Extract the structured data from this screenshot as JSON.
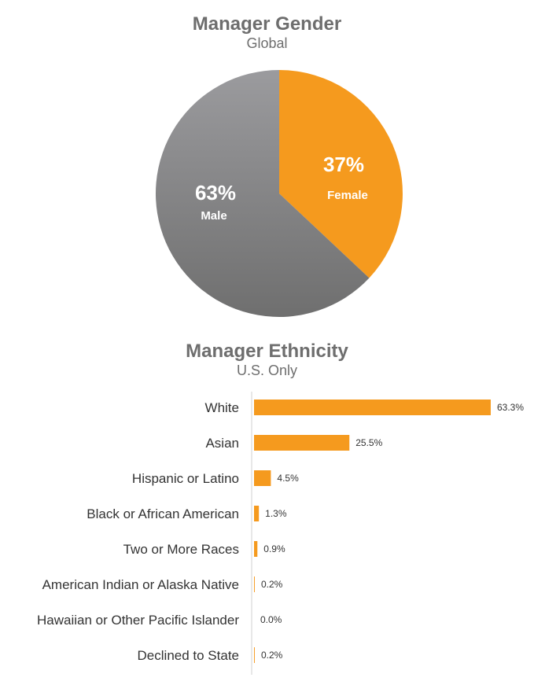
{
  "colors": {
    "orange": "#F59A1E",
    "gray_light": "#9A9A9C",
    "gray_dark": "#707070",
    "axis": "#D0D0D0"
  },
  "chart_data": [
    {
      "type": "pie",
      "title": "Manager Gender",
      "subtitle": "Global",
      "slices": [
        {
          "label": "Female",
          "value": 37,
          "display": "37%",
          "color": "#F59A1E"
        },
        {
          "label": "Male",
          "value": 63,
          "display": "63%",
          "color": "gray-gradient"
        }
      ]
    },
    {
      "type": "bar",
      "orientation": "horizontal",
      "title": "Manager Ethnicity",
      "subtitle": "U.S. Only",
      "categories": [
        "White",
        "Asian",
        "Hispanic or Latino",
        "Black or African American",
        "Two or More Races",
        "American Indian or Alaska Native",
        "Hawaiian or Other Pacific Islander",
        "Declined to State"
      ],
      "values": [
        63.3,
        25.5,
        4.5,
        1.3,
        0.9,
        0.2,
        0.0,
        0.2
      ],
      "value_labels": [
        "63.3%",
        "25.5%",
        "4.5%",
        "1.3%",
        "0.9%",
        "0.2%",
        "0.0%",
        "0.2%"
      ],
      "xlim": [
        0,
        63.3
      ],
      "grid": false,
      "legend": "none"
    }
  ]
}
